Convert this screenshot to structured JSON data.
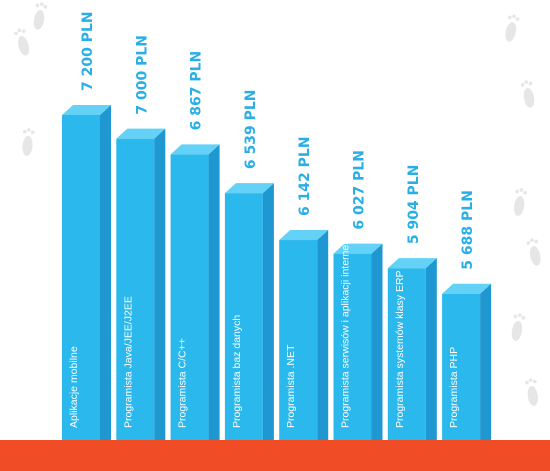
{
  "colors": {
    "bar_front": "#2ab8ed",
    "bar_side": "#1f97d0",
    "bar_top": "#63d2f6",
    "value_text": "#2aaee6",
    "ground": "#f04c26",
    "footprint": "#e6e6e6"
  },
  "chart_data": {
    "type": "bar",
    "categories": [
      "Aplikacje mobilne",
      "Programista Java/JEE/J2EE",
      "Programista C/C++",
      "Programista baz danych",
      "Programista .NET",
      "Programista serwisów i aplikacji internetowych",
      "Programista systemów klasy ERP",
      "Programista PHP"
    ],
    "values": [
      7200,
      7000,
      6867,
      6539,
      6142,
      6027,
      5904,
      5688
    ],
    "value_labels": [
      "7 200 PLN",
      "7 000 PLN",
      "6 867 PLN",
      "6 539 PLN",
      "6 142 PLN",
      "6 027 PLN",
      "5 904 PLN",
      "5 688 PLN"
    ],
    "title": "",
    "xlabel": "",
    "ylabel": "",
    "ylim": [
      4450,
      7200
    ],
    "grid": false,
    "legend": "none"
  }
}
